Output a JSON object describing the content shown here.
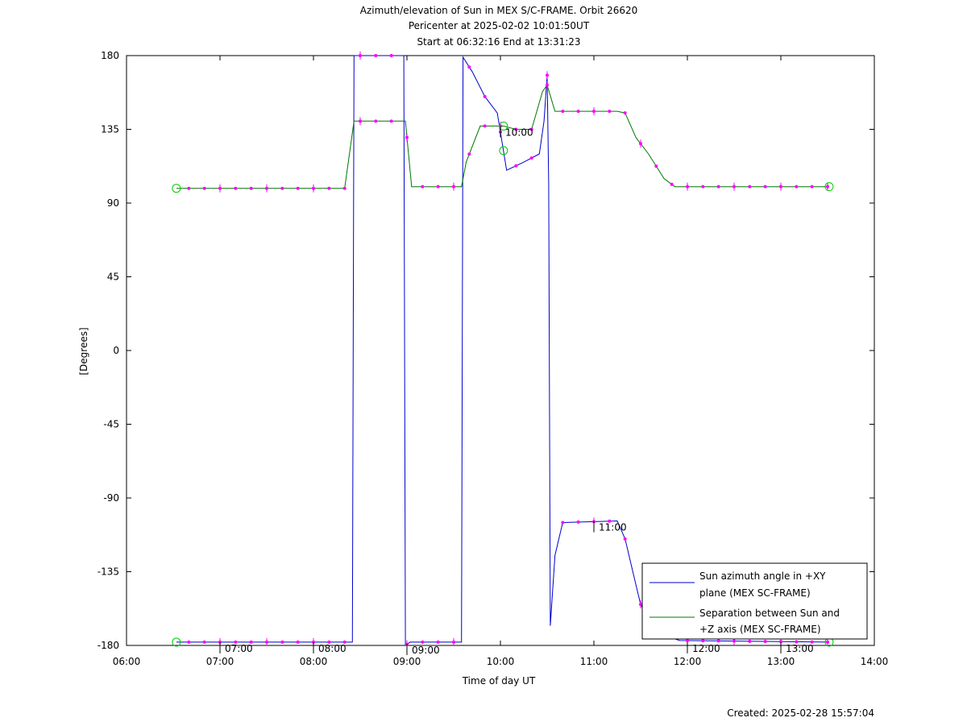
{
  "chart_data": {
    "type": "line",
    "title_lines": [
      "Azimuth/elevation of Sun in MEX S/C-FRAME.  Orbit 26620",
      "Pericenter at 2025-02-02 10:01:50UT",
      "Start at 06:32:16 End at 13:31:23"
    ],
    "xlabel": "Time of day UT",
    "ylabel": "[Degrees]",
    "xlim": [
      "06:00",
      "14:00"
    ],
    "ylim": [
      -180,
      180
    ],
    "x_ticks": [
      "06:00",
      "07:00",
      "08:00",
      "09:00",
      "10:00",
      "11:00",
      "12:00",
      "13:00",
      "14:00"
    ],
    "y_ticks": [
      "180",
      "135",
      "90",
      "45",
      "0",
      "-45",
      "-90",
      "-135",
      "-180"
    ],
    "legend_position": "bottom-right",
    "series": [
      {
        "name": "Sun azimuth angle in +XY plane (MEX SC-FRAME)",
        "legend_lines": [
          "Sun azimuth angle in +XY",
          "plane (MEX SC-FRAME)"
        ],
        "color": "#0000cc",
        "points": [
          [
            "06:32",
            -178
          ],
          [
            "08:10",
            -178
          ],
          [
            "08:25",
            -178
          ],
          [
            "08:26",
            180
          ],
          [
            "08:58",
            180
          ],
          [
            "08:59",
            -180
          ],
          [
            "09:02",
            -178
          ],
          [
            "09:35",
            -178
          ],
          [
            "09:36",
            179
          ],
          [
            "09:42",
            170
          ],
          [
            "09:50",
            155
          ],
          [
            "09:58",
            145
          ],
          [
            "10:04",
            110
          ],
          [
            "10:15",
            115
          ],
          [
            "10:25",
            120
          ],
          [
            "10:28",
            140
          ],
          [
            "10:30",
            168
          ],
          [
            "10:31",
            102
          ],
          [
            "10:32",
            -168
          ],
          [
            "10:35",
            -125
          ],
          [
            "10:40",
            -105
          ],
          [
            "11:15",
            -104
          ],
          [
            "11:20",
            -115
          ],
          [
            "11:25",
            -135
          ],
          [
            "11:30",
            -155
          ],
          [
            "11:40",
            -172
          ],
          [
            "11:55",
            -177
          ],
          [
            "13:31",
            -178
          ]
        ]
      },
      {
        "name": "Separation between Sun and +Z axis (MEX SC-FRAME)",
        "legend_lines": [
          "Separation between Sun and",
          "+Z axis (MEX SC-FRAME)"
        ],
        "color": "#007700",
        "points": [
          [
            "06:32",
            99
          ],
          [
            "08:20",
            99
          ],
          [
            "08:26",
            140
          ],
          [
            "08:59",
            140
          ],
          [
            "09:03",
            100
          ],
          [
            "09:35",
            100
          ],
          [
            "09:38",
            115
          ],
          [
            "09:47",
            137
          ],
          [
            "10:02",
            137
          ],
          [
            "10:10",
            135
          ],
          [
            "10:20",
            135
          ],
          [
            "10:27",
            158
          ],
          [
            "10:30",
            162
          ],
          [
            "10:35",
            146
          ],
          [
            "11:15",
            146
          ],
          [
            "11:20",
            145
          ],
          [
            "11:27",
            130
          ],
          [
            "11:35",
            120
          ],
          [
            "11:45",
            105
          ],
          [
            "11:52",
            100
          ],
          [
            "13:31",
            100
          ]
        ]
      }
    ],
    "time_labels": [
      "07:00",
      "08:00",
      "09:00",
      "10:00",
      "11:00",
      "12:00",
      "13:00"
    ],
    "footer": "Created: 2025-02-28 15:57:04"
  }
}
